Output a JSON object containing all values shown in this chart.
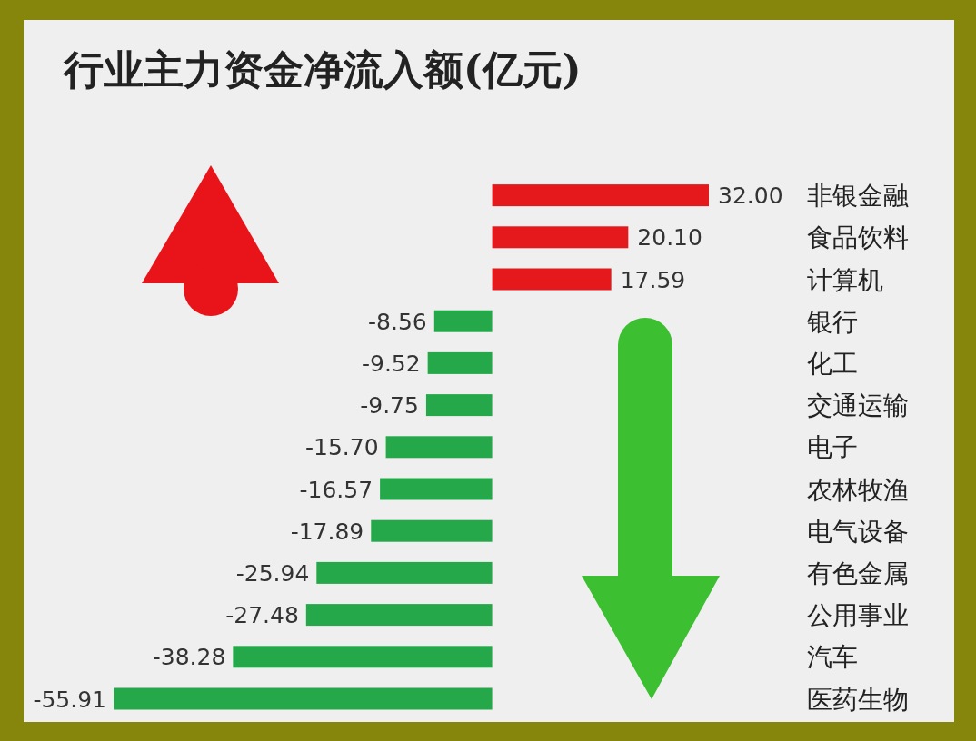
{
  "chart_data": {
    "type": "bar",
    "orientation": "horizontal",
    "title": "行业主力资金净流入额(亿元)",
    "categories": [
      "非银金融",
      "食品饮料",
      "计算机",
      "银行",
      "化工",
      "交通运输",
      "电子",
      "农林牧渔",
      "电气设备",
      "有色金属",
      "公用事业",
      "汽车",
      "医药生物"
    ],
    "values": [
      32.0,
      20.1,
      17.59,
      -8.56,
      -9.52,
      -9.75,
      -15.7,
      -16.57,
      -17.89,
      -25.94,
      -27.48,
      -38.28,
      -55.91
    ],
    "value_labels": [
      "32.00",
      "20.10",
      "17.59",
      "-8.56",
      "-9.52",
      "-9.75",
      "-15.70",
      "-16.57",
      "-17.89",
      "-25.94",
      "-27.48",
      "-38.28",
      "-55.91"
    ],
    "colors": [
      "#e5191c",
      "#e5191c",
      "#e5191c",
      "#25a84a",
      "#25a84a",
      "#25a84a",
      "#25a84a",
      "#25a84a",
      "#25a84a",
      "#25a84a",
      "#25a84a",
      "#25a84a",
      "#25a84a"
    ]
  }
}
